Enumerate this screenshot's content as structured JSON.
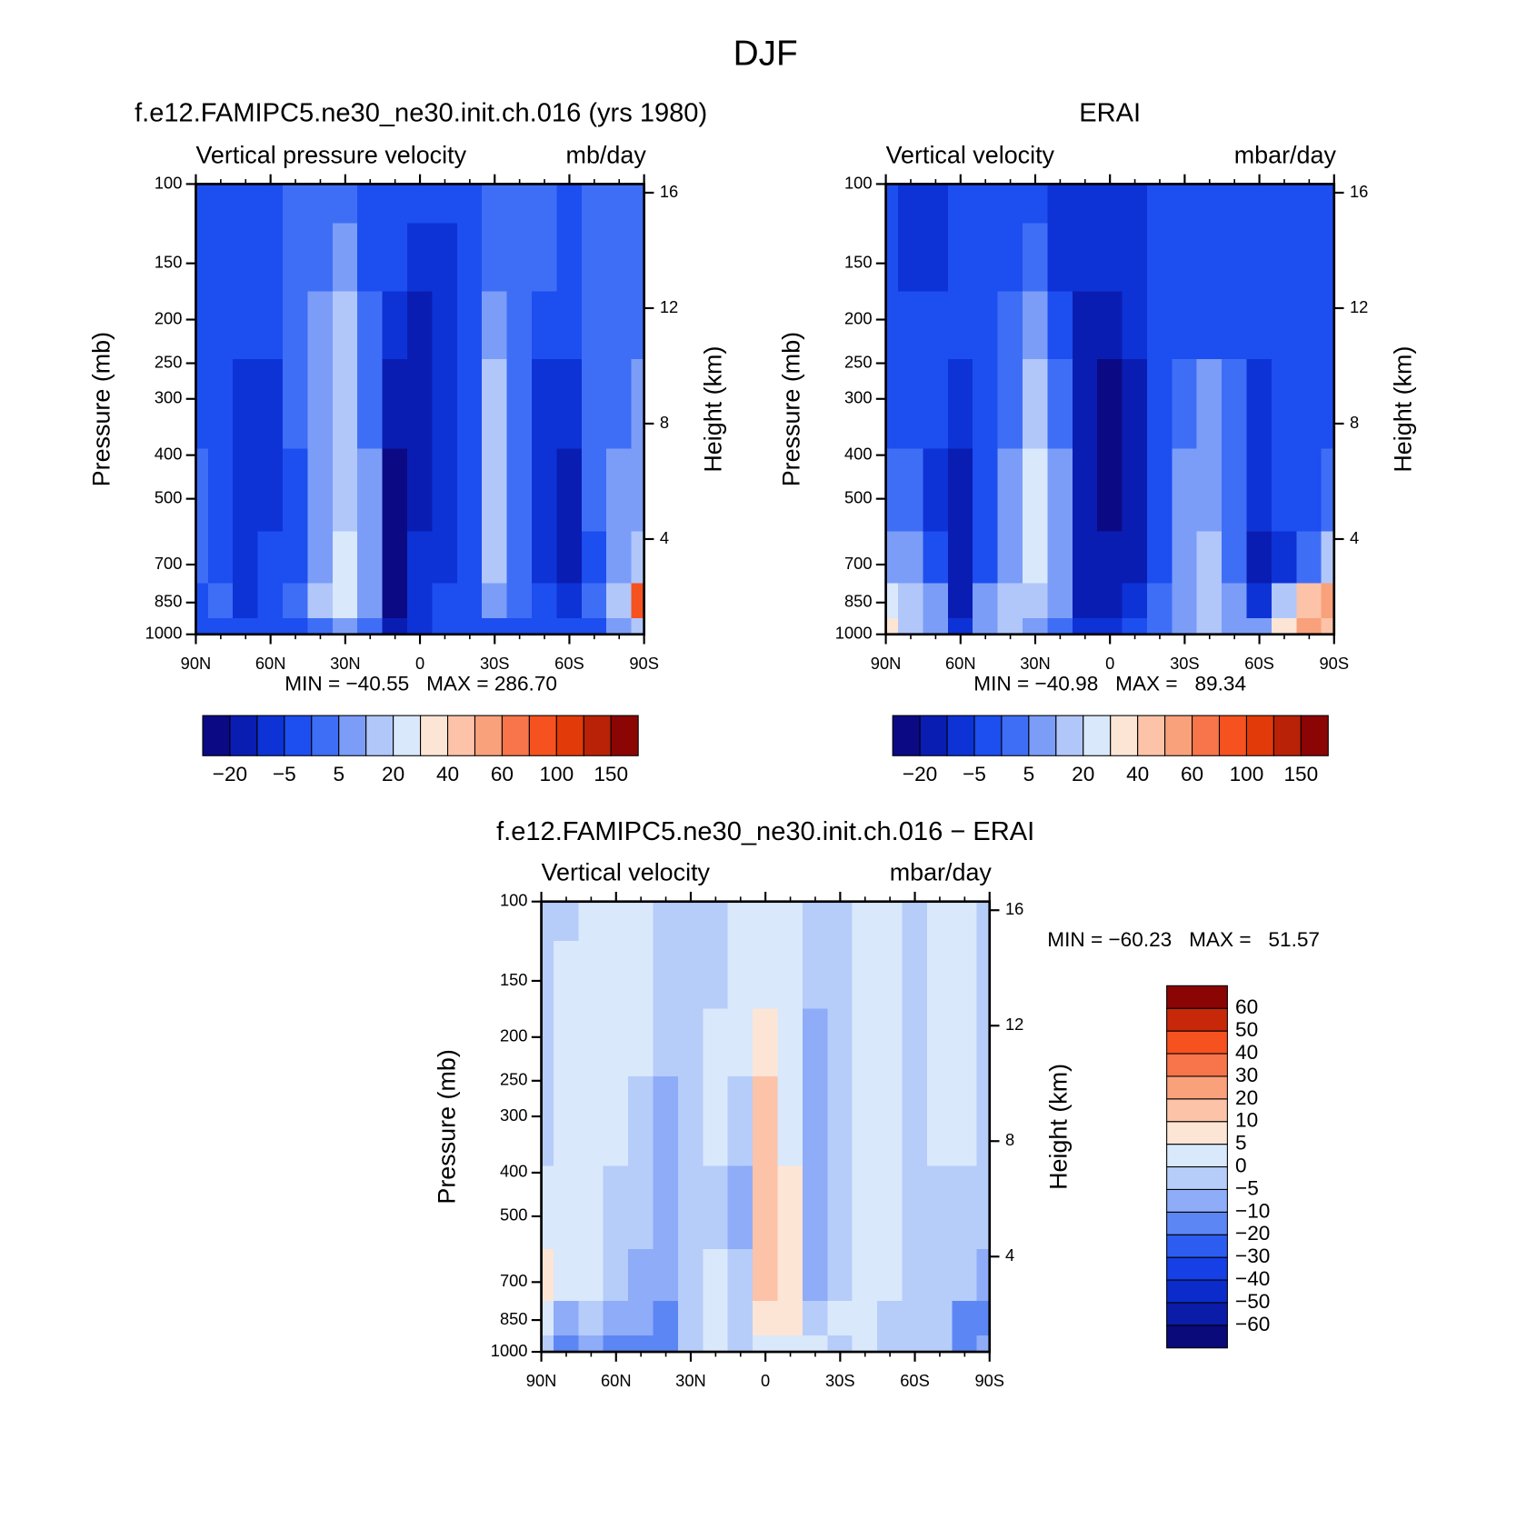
{
  "title": "DJF",
  "chart_data": [
    {
      "type": "contour",
      "title": "f.e12.FAMIPC5.ne30_ne30.init.ch.016 (yrs 1980)",
      "subtitle_left": "Vertical pressure velocity",
      "subtitle_right": "mb/day",
      "ylabel": "Pressure (mb)",
      "y2label": "Height (km)",
      "stats": "MIN = −40.55   MAX = 286.70",
      "yscale": "log",
      "ylim": [
        1000,
        100
      ],
      "yticks": [
        100,
        150,
        200,
        250,
        300,
        400,
        500,
        700,
        850,
        1000
      ],
      "y2lim": [
        0.7,
        16.3
      ],
      "y2ticks": [
        4,
        8,
        12,
        16
      ],
      "xlim": [
        90,
        -90
      ],
      "xticks": [
        {
          "value": 90,
          "label": "90N"
        },
        {
          "value": 60,
          "label": "60N"
        },
        {
          "value": 30,
          "label": "30N"
        },
        0,
        {
          "value": -30,
          "label": "30S"
        },
        {
          "value": -60,
          "label": "60S"
        },
        {
          "value": -90,
          "label": "90S"
        }
      ],
      "x": [
        90,
        80,
        70,
        60,
        50,
        40,
        30,
        20,
        10,
        0,
        -10,
        -20,
        -30,
        -40,
        -50,
        -60,
        -70,
        -80,
        -90
      ],
      "y": [
        100,
        150,
        200,
        300,
        500,
        700,
        850,
        1000
      ],
      "z": [
        [
          -2,
          -2,
          -2,
          -2,
          3,
          3,
          3,
          -2,
          -2,
          -2,
          -2,
          -2,
          3,
          3,
          3,
          -2,
          3,
          3,
          3
        ],
        [
          -2,
          -2,
          -2,
          -2,
          3,
          3,
          7,
          -2,
          -2,
          -7,
          -7,
          -2,
          3,
          3,
          3,
          -2,
          3,
          3,
          3
        ],
        [
          -2,
          -2,
          -2,
          -2,
          3,
          7,
          15,
          3,
          -7,
          -15,
          -7,
          -2,
          7,
          3,
          -2,
          -2,
          3,
          3,
          3
        ],
        [
          -2,
          -2,
          -7,
          -7,
          3,
          7,
          15,
          3,
          -15,
          -15,
          -7,
          -2,
          15,
          3,
          -7,
          -7,
          3,
          3,
          7
        ],
        [
          3,
          -2,
          -7,
          -7,
          -2,
          7,
          15,
          7,
          -30,
          -15,
          -7,
          -2,
          15,
          3,
          -7,
          -15,
          3,
          7,
          7
        ],
        [
          3,
          -2,
          -7,
          -2,
          -2,
          7,
          25,
          7,
          -30,
          -7,
          -7,
          -2,
          15,
          3,
          -7,
          -15,
          -2,
          7,
          15
        ],
        [
          -2,
          3,
          -7,
          -2,
          3,
          15,
          25,
          7,
          -30,
          -7,
          -2,
          -2,
          7,
          3,
          -2,
          -7,
          3,
          15,
          90
        ],
        [
          -2,
          -2,
          -2,
          -2,
          -2,
          3,
          7,
          3,
          -15,
          -7,
          -2,
          -2,
          -2,
          -2,
          -2,
          -2,
          -2,
          7,
          15
        ]
      ],
      "colorbar_orientation": "horizontal",
      "levels": [
        -20,
        -10,
        -5,
        0,
        5,
        10,
        20,
        30,
        40,
        50,
        60,
        80,
        100,
        120,
        150
      ],
      "level_labels": [
        "−20",
        null,
        "−5",
        null,
        "5",
        null,
        "20",
        null,
        "40",
        null,
        "60",
        null,
        "100",
        null,
        "150"
      ],
      "colors": [
        "#0b0a84",
        "#0a1db3",
        "#0d33d6",
        "#1d4ef0",
        "#3f6ef6",
        "#7b9df8",
        "#b1c7fa",
        "#d9e8fb",
        "#fde5d6",
        "#fcc3a8",
        "#f9a17b",
        "#f8744a",
        "#f5521f",
        "#e23a09",
        "#b92206",
        "#8b0505"
      ]
    },
    {
      "type": "contour",
      "title": "ERAI",
      "subtitle_left": "Vertical velocity",
      "subtitle_right": "mbar/day",
      "ylabel": "Pressure (mb)",
      "y2label": "Height (km)",
      "stats": "MIN = −40.98   MAX =   89.34",
      "yscale": "log",
      "ylim": [
        1000,
        100
      ],
      "yticks": [
        100,
        150,
        200,
        250,
        300,
        400,
        500,
        700,
        850,
        1000
      ],
      "y2lim": [
        0.7,
        16.3
      ],
      "y2ticks": [
        4,
        8,
        12,
        16
      ],
      "xlim": [
        90,
        -90
      ],
      "xticks": [
        {
          "value": 90,
          "label": "90N"
        },
        {
          "value": 60,
          "label": "60N"
        },
        {
          "value": 30,
          "label": "30N"
        },
        0,
        {
          "value": -30,
          "label": "30S"
        },
        {
          "value": -60,
          "label": "60S"
        },
        {
          "value": -90,
          "label": "90S"
        }
      ],
      "x": [
        90,
        80,
        70,
        60,
        50,
        40,
        30,
        20,
        10,
        0,
        -10,
        -20,
        -30,
        -40,
        -50,
        -60,
        -70,
        -80,
        -90
      ],
      "y": [
        100,
        150,
        200,
        300,
        500,
        700,
        850,
        1000
      ],
      "z": [
        [
          -2,
          -7,
          -7,
          -2,
          -2,
          -2,
          -2,
          -7,
          -7,
          -7,
          -7,
          -2,
          -2,
          -2,
          -2,
          -2,
          -2,
          -2,
          -2
        ],
        [
          -2,
          -7,
          -7,
          -2,
          -2,
          -2,
          3,
          -7,
          -7,
          -7,
          -7,
          -2,
          -2,
          -2,
          -2,
          -2,
          -2,
          -2,
          -2
        ],
        [
          -2,
          -2,
          -2,
          -2,
          -2,
          3,
          7,
          -2,
          -15,
          -15,
          -7,
          -2,
          -2,
          -2,
          -2,
          -2,
          -2,
          -2,
          -2
        ],
        [
          -2,
          -2,
          -2,
          -7,
          -2,
          3,
          15,
          3,
          -15,
          -30,
          -15,
          -2,
          3,
          7,
          3,
          -7,
          -2,
          -2,
          -2
        ],
        [
          3,
          3,
          -7,
          -15,
          -2,
          7,
          25,
          7,
          -15,
          -30,
          -15,
          -2,
          7,
          7,
          3,
          -7,
          -2,
          -2,
          3
        ],
        [
          7,
          7,
          -2,
          -15,
          -2,
          7,
          25,
          7,
          -15,
          -15,
          -15,
          -2,
          7,
          15,
          3,
          -15,
          -7,
          3,
          15
        ],
        [
          25,
          15,
          7,
          -15,
          7,
          15,
          15,
          7,
          -15,
          -15,
          -7,
          3,
          7,
          15,
          7,
          -7,
          15,
          45,
          55
        ],
        [
          35,
          15,
          7,
          -7,
          7,
          15,
          7,
          3,
          -7,
          -7,
          -2,
          3,
          7,
          15,
          7,
          7,
          35,
          55,
          45
        ]
      ],
      "colorbar_orientation": "horizontal",
      "levels": [
        -20,
        -10,
        -5,
        0,
        5,
        10,
        20,
        30,
        40,
        50,
        60,
        80,
        100,
        120,
        150
      ],
      "level_labels": [
        "−20",
        null,
        "−5",
        null,
        "5",
        null,
        "20",
        null,
        "40",
        null,
        "60",
        null,
        "100",
        null,
        "150"
      ],
      "colors": [
        "#0b0a84",
        "#0a1db3",
        "#0d33d6",
        "#1d4ef0",
        "#3f6ef6",
        "#7b9df8",
        "#b1c7fa",
        "#d9e8fb",
        "#fde5d6",
        "#fcc3a8",
        "#f9a17b",
        "#f8744a",
        "#f5521f",
        "#e23a09",
        "#b92206",
        "#8b0505"
      ]
    },
    {
      "type": "contour",
      "title": "f.e12.FAMIPC5.ne30_ne30.init.ch.016 − ERAI",
      "subtitle_left": "Vertical velocity",
      "subtitle_right": "mbar/day",
      "ylabel": "Pressure (mb)",
      "y2label": "Height (km)",
      "stats": "MIN = −60.23   MAX =   51.57",
      "yscale": "log",
      "ylim": [
        1000,
        100
      ],
      "yticks": [
        100,
        150,
        200,
        250,
        300,
        400,
        500,
        700,
        850,
        1000
      ],
      "y2lim": [
        0.7,
        16.3
      ],
      "y2ticks": [
        4,
        8,
        12,
        16
      ],
      "xlim": [
        90,
        -90
      ],
      "xticks": [
        {
          "value": 90,
          "label": "90N"
        },
        {
          "value": 60,
          "label": "60N"
        },
        {
          "value": 30,
          "label": "30N"
        },
        0,
        {
          "value": -30,
          "label": "30S"
        },
        {
          "value": -60,
          "label": "60S"
        },
        {
          "value": -90,
          "label": "90S"
        }
      ],
      "x": [
        90,
        80,
        70,
        60,
        50,
        40,
        30,
        20,
        10,
        0,
        -10,
        -20,
        -30,
        -40,
        -50,
        -60,
        -70,
        -80,
        -90
      ],
      "y": [
        100,
        150,
        200,
        300,
        500,
        700,
        850,
        1000
      ],
      "z": [
        [
          -2,
          -2,
          2,
          2,
          2,
          -2,
          -2,
          -2,
          2,
          2,
          2,
          -2,
          -2,
          2,
          2,
          -2,
          2,
          2,
          -2
        ],
        [
          -2,
          2,
          2,
          2,
          2,
          -2,
          -2,
          -2,
          2,
          2,
          2,
          -2,
          -2,
          2,
          2,
          -2,
          2,
          2,
          -2
        ],
        [
          -2,
          2,
          2,
          2,
          2,
          -2,
          -2,
          2,
          2,
          7,
          2,
          -7,
          -2,
          2,
          2,
          -2,
          2,
          2,
          -2
        ],
        [
          -2,
          2,
          2,
          2,
          -2,
          -7,
          -2,
          2,
          -2,
          15,
          2,
          -7,
          -2,
          2,
          2,
          -2,
          2,
          2,
          -2
        ],
        [
          2,
          2,
          2,
          -2,
          -2,
          -7,
          -2,
          -2,
          -7,
          15,
          7,
          -7,
          -2,
          2,
          2,
          -2,
          -2,
          -2,
          -2
        ],
        [
          7,
          2,
          2,
          -2,
          -7,
          -7,
          -2,
          2,
          -2,
          15,
          7,
          -7,
          -2,
          2,
          2,
          -2,
          -2,
          -2,
          -7
        ],
        [
          2,
          -7,
          -2,
          -7,
          -7,
          -15,
          -2,
          2,
          -2,
          7,
          7,
          -2,
          2,
          2,
          -2,
          -2,
          -2,
          -15,
          -15
        ],
        [
          -2,
          -15,
          -7,
          -15,
          -15,
          -15,
          -2,
          2,
          -2,
          2,
          2,
          2,
          -2,
          2,
          -2,
          -2,
          -2,
          -15,
          -7
        ]
      ],
      "colorbar_orientation": "vertical",
      "levels": [
        -60,
        -50,
        -40,
        -30,
        -20,
        -10,
        -5,
        0,
        5,
        10,
        20,
        30,
        40,
        50,
        60
      ],
      "level_labels": [
        "−60",
        "−50",
        "−40",
        "−30",
        "−20",
        "−10",
        "−5",
        "0",
        "5",
        "10",
        "20",
        "30",
        "40",
        "50",
        "60"
      ],
      "colors": [
        "#0a0a7a",
        "#0a1ca8",
        "#0b2ccb",
        "#1640e6",
        "#2d5cf0",
        "#5d86f5",
        "#8eacf8",
        "#b6cdfa",
        "#d9e8fb",
        "#fde5d6",
        "#fcc3a8",
        "#f9a17b",
        "#f8744a",
        "#f5521f",
        "#c8280a",
        "#8b0505"
      ]
    }
  ]
}
